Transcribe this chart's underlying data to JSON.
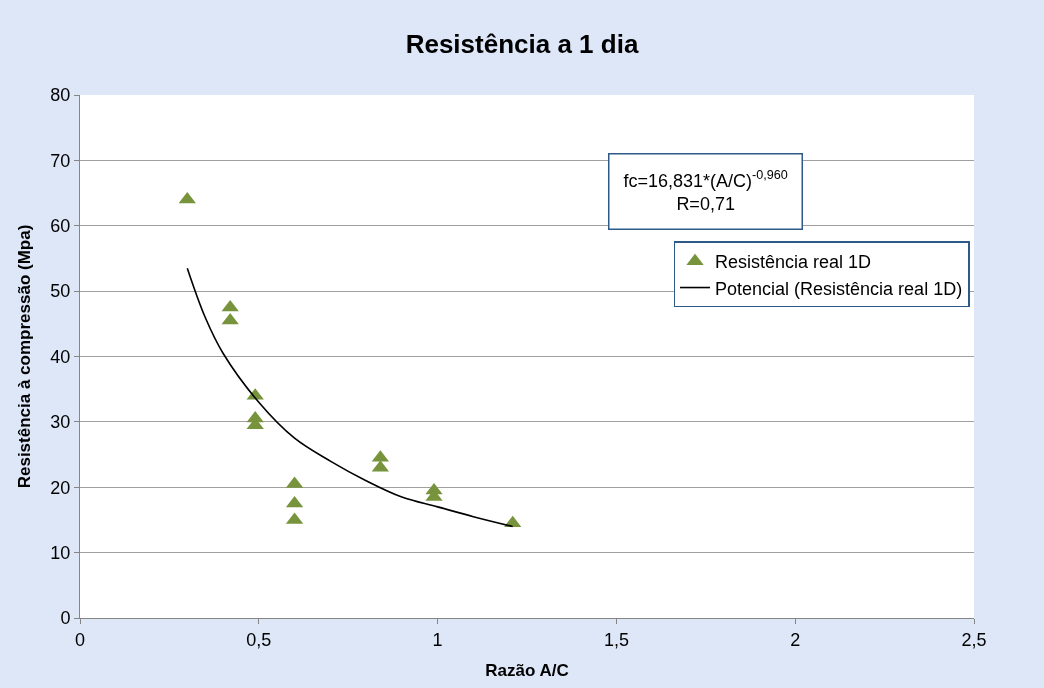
{
  "chart_data": {
    "type": "scatter",
    "title": "Resistência a 1 dia",
    "xlabel": "Razão A/C",
    "ylabel": "Resistência à compressão (Mpa)",
    "xlim": [
      0,
      2.5
    ],
    "xticks": [
      0,
      {
        "value": 0.5,
        "label": "0,5"
      },
      1,
      {
        "value": 1.5,
        "label": "1,5"
      },
      2,
      {
        "value": 2.5,
        "label": "2,5"
      }
    ],
    "ylim": [
      0,
      80
    ],
    "yticks": [
      0,
      10,
      20,
      30,
      40,
      50,
      60,
      70,
      80
    ],
    "grid": "y",
    "legend": "right",
    "marker": "triangle",
    "annotations": [
      "fc=16,831*(A/C)$^{-0,960}$\nR=0,71"
    ],
    "series": [
      {
        "name": "Resistência real 1D",
        "color": "#77933c",
        "x": [
          0.3,
          0.42,
          0.42,
          0.49,
          0.49,
          0.49,
          0.6,
          0.6,
          0.6,
          0.84,
          0.84,
          0.99,
          0.99,
          1.21
        ],
        "values": [
          64,
          47.5,
          45.5,
          34,
          30.5,
          29.5,
          20.5,
          17.5,
          15,
          24.5,
          23,
          19.5,
          18.5,
          14.5
        ]
      },
      {
        "name": "Potencial (Resistência real 1D)",
        "type": "line",
        "color": "#000000",
        "line_style": "solid",
        "marker": "none",
        "x": [
          0.3,
          0.35,
          0.4,
          0.5,
          0.6,
          0.7,
          0.8,
          0.9,
          1.0,
          1.1,
          1.21
        ],
        "values": [
          53.5,
          46,
          40.5,
          33,
          27.5,
          24,
          21,
          18.5,
          17,
          15.5,
          14
        ]
      }
    ]
  }
}
